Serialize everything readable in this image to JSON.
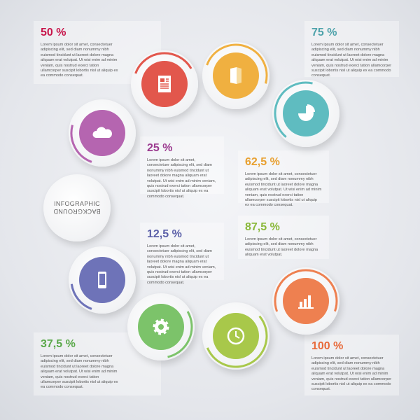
{
  "center_label": {
    "line1": "INFOGRAPHIC",
    "line2": "BACKGROUND"
  },
  "items": [
    {
      "key": "a",
      "percent": "50 %",
      "color": "#c8174c",
      "circle": "#e2574c",
      "icon": "document-icon",
      "text": "Lorem ipsum dolor sit amet, consectetuer adipiscing elit, sed diam nonummy nibh euismod tincidunt ut laoreet dolore magna aliquam erat volutpat. Ut wisi enim ad minim veniam, quis nostrud exerci tation ullamcorper suscipit lobortis nisl ut aliquip ex ea commodo consequat."
    },
    {
      "key": "b",
      "percent": "75 %",
      "color": "#4fa3ab",
      "circle": "#f0b040",
      "icon": "book-icon",
      "text": "Lorem ipsum dolor sit amet, consectetuer adipiscing elit, sed diam nonummy nibh euismod tincidunt ut laoreet dolore magna aliquam erat volutpat. Ut wisi enim ad minim veniam, quis nostrud exerci tation ullamcorper suscipit lobortis nisl ut aliquip ex ea commodo consequat."
    },
    {
      "key": "c",
      "percent": "25 %",
      "color": "#9b3a8f",
      "circle": "#b565b0",
      "icon": "cloud-icon",
      "text": "Lorem ipsum dolor sit amet, consectetuer adipiscing elit, sed diam nonummy nibh euismod tincidunt ut laoreet dolore magna aliquam erat volutpat. Ut wisi enim ad minim veniam, quis nostrud exerci tation ullamcorper suscipit lobortis nisl ut aliquip ex ea commodo consequat."
    },
    {
      "key": "d",
      "percent": "62,5 %",
      "color": "#e8a030",
      "circle": "#5fbcc0",
      "icon": "pie-chart-icon",
      "text": "Lorem ipsum dolor sit amet, consectetuer adipiscing elit, sed diam nonummy nibh euismod tincidunt ut laoreet dolore magna aliquam erat volutpat. Ut wisi enim ad minim veniam, quis nostrud exerci tation ullamcorper suscipit lobortis nisl ut aliquip ex ea commodo consequat."
    },
    {
      "key": "e",
      "percent": "12,5 %",
      "color": "#5a5fa8",
      "circle": "#6e73b8",
      "icon": "phone-icon",
      "text": "Lorem ipsum dolor sit amet, consectetuer adipiscing elit, sed diam nonummy nibh euismod tincidunt ut laoreet dolore magna aliquam erat volutpat. Ut wisi enim ad minim veniam, quis nostrud exerci tation ullamcorper suscipit lobortis nisl ut aliquip ex ea commodo consequat."
    },
    {
      "key": "f",
      "percent": "87,5 %",
      "color": "#8ab83a",
      "circle": "#a8c84a",
      "icon": "clock-icon",
      "text": "Lorem ipsum dolor sit amet, consectetuer adipiscing elit, sed diam nonummy nibh euismod tincidunt ut laoreet dolore magna aliquam erat volutpat."
    },
    {
      "key": "g",
      "percent": "37,5 %",
      "color": "#5aa84a",
      "circle": "#7cc36a",
      "icon": "gear-icon",
      "text": "Lorem ipsum dolor sit amet, consectetuer adipiscing elit, sed diam nonummy nibh euismod tincidunt ut laoreet dolore magna aliquam erat volutpat. Ut wisi enim ad minim veniam, quis nostrud exerci tation ullamcorper suscipit lobortis nisl ut aliquip ex ea commodo consequat."
    },
    {
      "key": "h",
      "percent": "100 %",
      "color": "#e86a3a",
      "circle": "#ee8050",
      "icon": "bar-chart-icon",
      "text": "Lorem ipsum dolor sit amet, consectetuer adipiscing elit, sed diam nonummy nibh euismod tincidunt ut laoreet dolore magna aliquam erat volutpat. Ut wisi enim ad minim veniam, quis nostrud exerci tation ullamcorper suscipit lobortis nisl ut aliquip ex ea commodo consequat."
    }
  ]
}
